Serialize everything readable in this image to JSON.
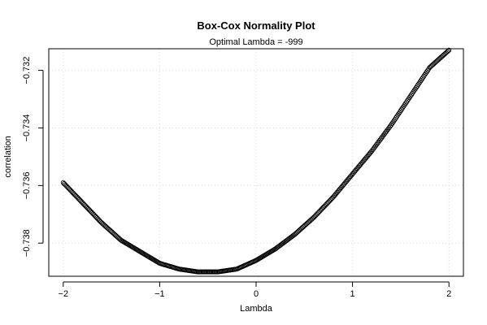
{
  "chart_data": {
    "type": "scatter",
    "title": "Box-Cox Normality Plot",
    "subtitle": "Optimal Lambda = -999",
    "xlabel": "Lambda",
    "ylabel": "correlation",
    "xlim": [
      -2.15,
      2.15
    ],
    "ylim": [
      -0.73915,
      -0.73125
    ],
    "x_ticks": [
      -2,
      -1,
      0,
      1,
      2
    ],
    "x_tick_labels": [
      "−2",
      "−1",
      "0",
      "1",
      "2"
    ],
    "y_ticks": [
      -0.738,
      -0.736,
      -0.734,
      -0.732
    ],
    "y_tick_labels": [
      "−0.738",
      "−0.736",
      "−0.734",
      "−0.732"
    ],
    "grid": true,
    "marker": "open-circle",
    "series": [
      {
        "x": [
          -2.0,
          -1.8,
          -1.6,
          -1.4,
          -1.2,
          -1.0,
          -0.8,
          -0.6,
          -0.5,
          -0.4,
          -0.2,
          0.0,
          0.2,
          0.4,
          0.6,
          0.8,
          1.0,
          1.2,
          1.4,
          1.6,
          1.8,
          2.0
        ],
        "values": [
          -0.7359,
          -0.7366,
          -0.7373,
          -0.7379,
          -0.7383,
          -0.7387,
          -0.7389,
          -0.739,
          -0.739,
          -0.739,
          -0.7389,
          -0.7386,
          -0.7382,
          -0.7377,
          -0.7371,
          -0.7364,
          -0.7356,
          -0.7348,
          -0.7339,
          -0.7329,
          -0.7319,
          -0.7313
        ]
      }
    ]
  }
}
